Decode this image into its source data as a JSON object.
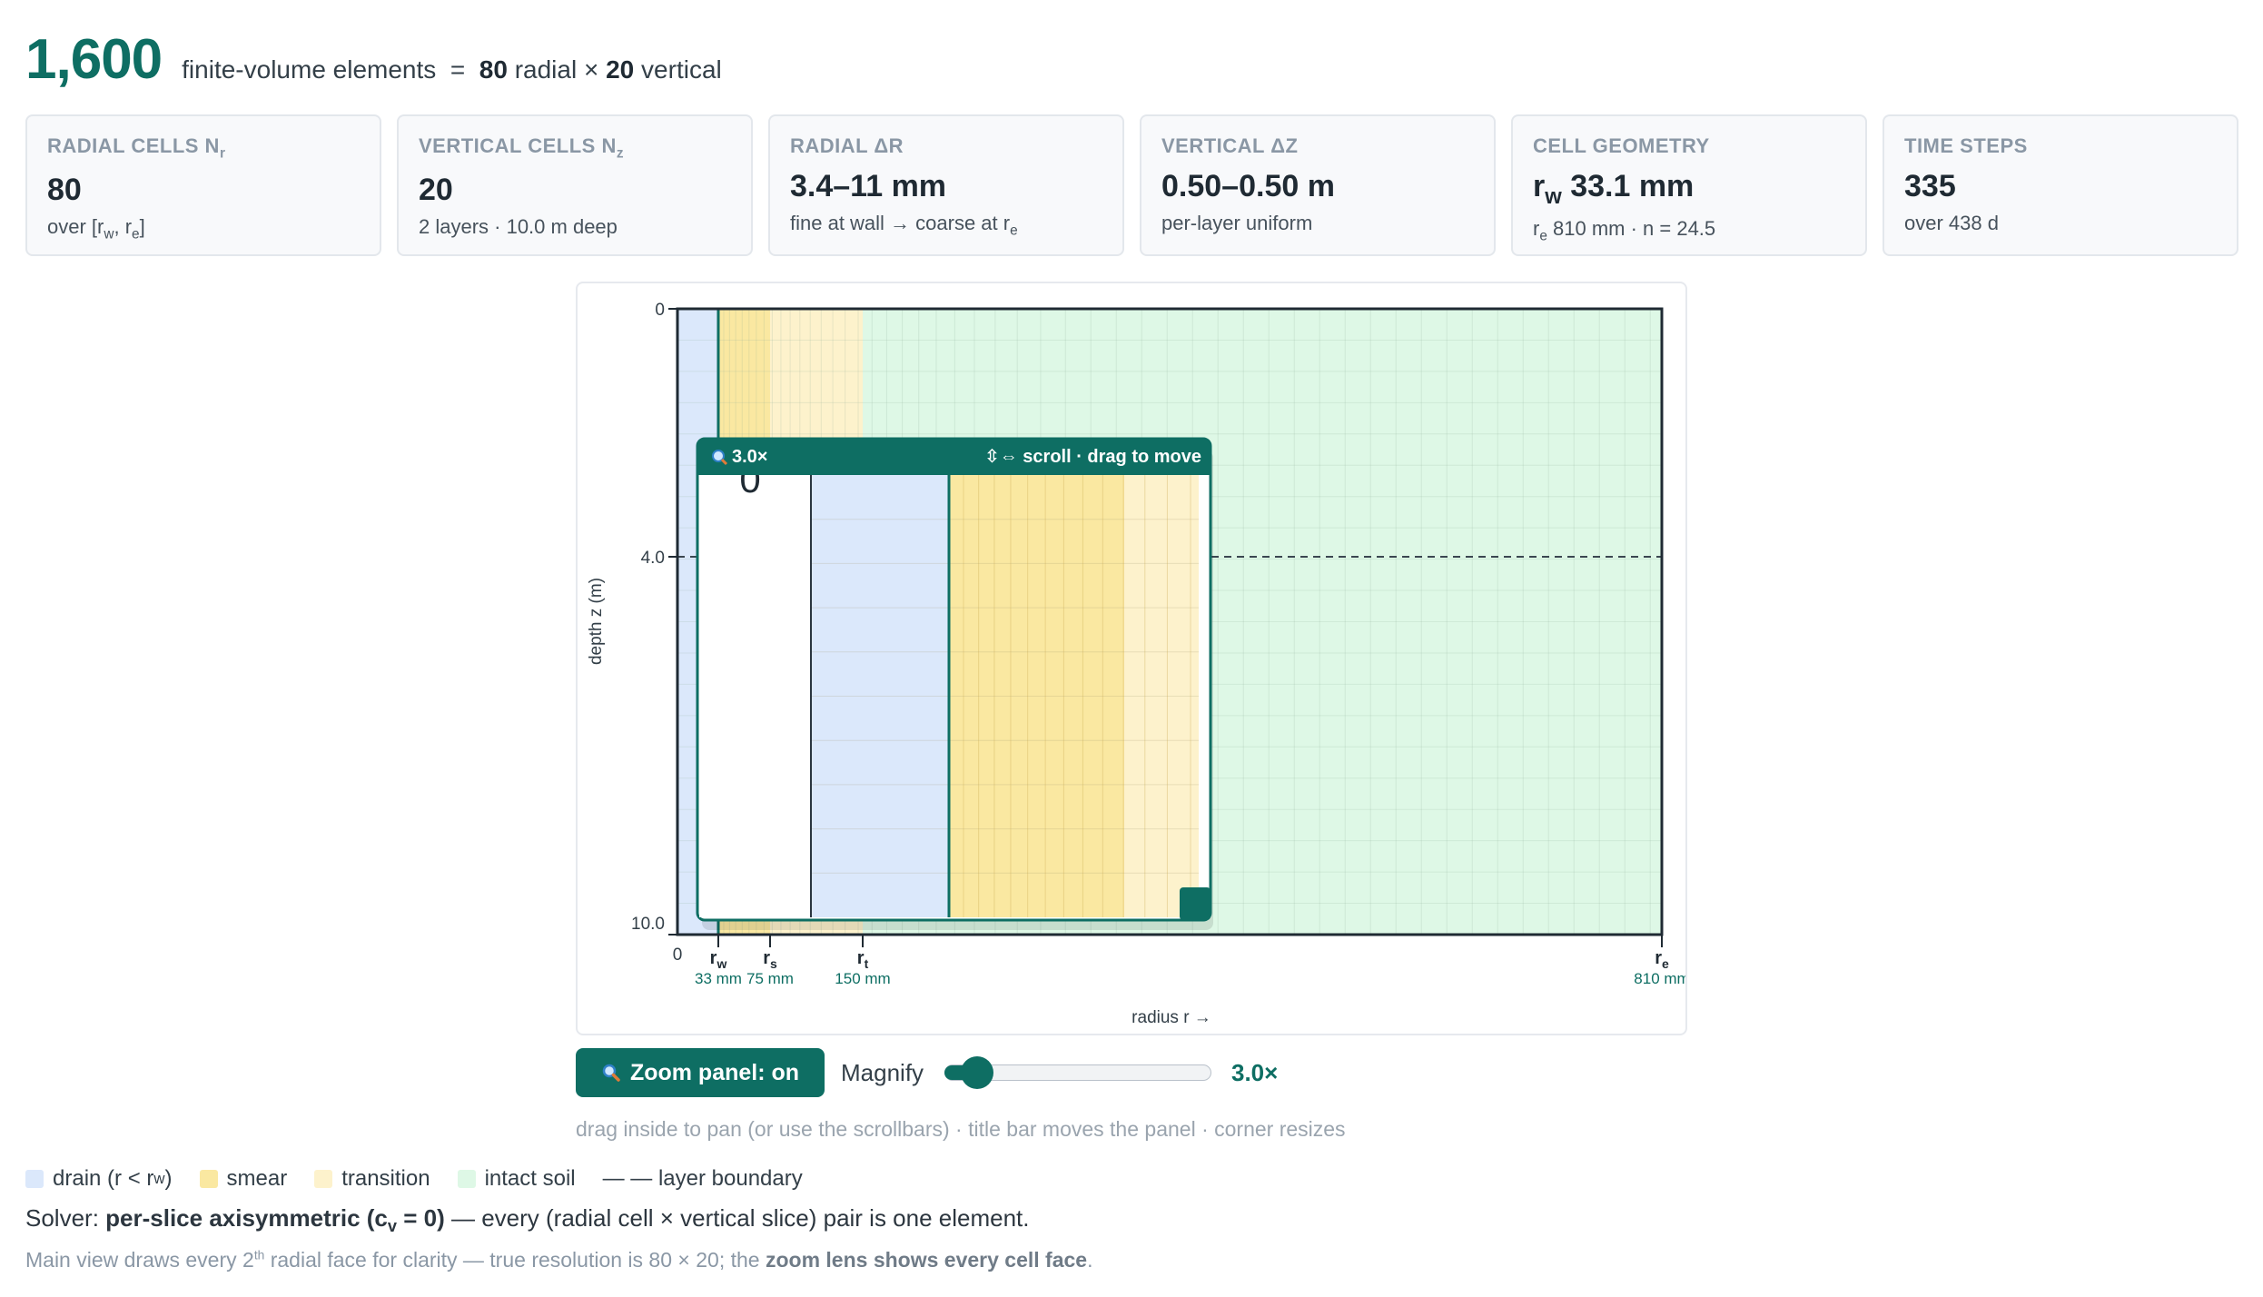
{
  "headline": {
    "count": "1,600",
    "text": "finite-volume elements",
    "eq": "=",
    "radial_num": "80",
    "radial_word": "radial",
    "times": "×",
    "vertical_num": "20",
    "vertical_word": "vertical"
  },
  "cards": [
    {
      "label": "RADIAL CELLS N",
      "label_sub": "r",
      "value": "80",
      "sub_prefix": "over [r",
      "sub_s1": "w",
      "sub_mid": ", r",
      "sub_s2": "e",
      "sub_suffix": "]"
    },
    {
      "label": "VERTICAL CELLS N",
      "label_sub": "z",
      "value": "20",
      "sub": "2 layers · 10.0 m deep"
    },
    {
      "label": "RADIAL ΔR",
      "value": "3.4–11 mm",
      "sub_prefix": "fine at wall → coarse at r",
      "sub_s1": "e"
    },
    {
      "label": "VERTICAL ΔZ",
      "value": "0.50–0.50 m",
      "sub": "per-layer uniform"
    },
    {
      "label": "CELL GEOMETRY",
      "value_prefix": "r",
      "value_sub": "w",
      "value_rest": " 33.1 mm",
      "sub_prefix": "r",
      "sub_s1": "e",
      "sub_rest": " 810 mm · n = 24.5"
    },
    {
      "label": "TIME STEPS",
      "value": "335",
      "sub": "over 438 d"
    }
  ],
  "plot": {
    "y_ticks": [
      "0",
      "4.0",
      "10.0"
    ],
    "x_origin": "0",
    "markers": [
      {
        "sym": "r",
        "sub": "w",
        "val": "33 mm"
      },
      {
        "sym": "r",
        "sub": "s",
        "val": "75 mm"
      },
      {
        "sym": "r",
        "sub": "t",
        "val": "150 mm"
      },
      {
        "sym": "r",
        "sub": "e",
        "val": "810 mm"
      }
    ],
    "ylabel": "depth z (m)",
    "xlabel": "radius r →",
    "domain": {
      "r_min_mm": 0,
      "r_w_mm": 33,
      "r_s_mm": 75,
      "r_t_mm": 150,
      "r_e_mm": 810,
      "depth_m": 10.0,
      "layer_boundary_m": 4.0
    },
    "colors": {
      "drain": "#dbe8fb",
      "smear": "#fae8a1",
      "transition": "#fdf2cc",
      "intact": "#def8e6",
      "accent": "#0e6e63"
    }
  },
  "lens": {
    "zoom": "3.0×",
    "hint": "⇳⇔ scroll · drag to move",
    "glyph": "0"
  },
  "controls": {
    "zoom_button": "Zoom panel: on",
    "magnify_label": "Magnify",
    "magnify_value": "3.0×",
    "magnify_level": 0.1,
    "hint": "drag inside to pan (or use the scrollbars) · title bar moves the panel · corner resizes"
  },
  "legend": {
    "drain_prefix": "drain (r < r",
    "drain_sub": "w",
    "drain_suffix": ")",
    "smear": "smear",
    "transition": "transition",
    "intact": "intact soil",
    "boundary": "— — layer boundary"
  },
  "solver": {
    "prefix": "Solver:",
    "bold_a": "per-slice axisymmetric (c",
    "bold_sub": "v",
    "bold_b": " = 0)",
    "rest": " — every (radial cell × vertical slice) pair is one element."
  },
  "footnote": {
    "a": "Main view draws every 2",
    "sup": "th",
    "b": " radial face for clarity — true resolution is 80 × 20; the ",
    "bold": "zoom lens shows every cell face",
    "c": "."
  }
}
